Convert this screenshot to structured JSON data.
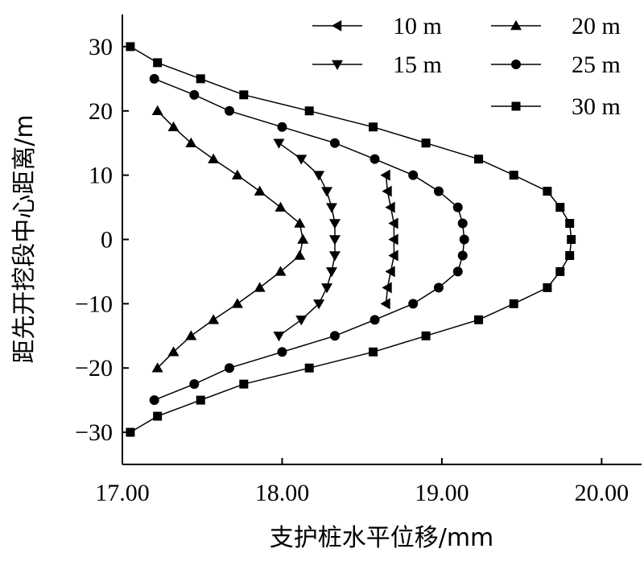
{
  "chart_data": {
    "type": "line",
    "xlabel": "支护桩水平位移/mm",
    "ylabel": "距先开挖段中心距离/m",
    "xlim": [
      17.0,
      20.25
    ],
    "ylim": [
      -35,
      35
    ],
    "x_ticks": [
      17.0,
      18.0,
      19.0,
      20.0
    ],
    "x_tick_labels": [
      "17.00",
      "18.00",
      "19.00",
      "20.00"
    ],
    "y_ticks": [
      -30,
      -20,
      -10,
      0,
      10,
      20,
      30
    ],
    "y_tick_labels": [
      "−30",
      "−20",
      "−10",
      "0",
      "10",
      "20",
      "30"
    ],
    "grid": false,
    "legend_position": "top-right",
    "series": [
      {
        "name": "10 m",
        "marker": "triangle-left",
        "points": [
          [
            18.65,
            10
          ],
          [
            18.66,
            7.5
          ],
          [
            18.68,
            5
          ],
          [
            18.7,
            2.5
          ],
          [
            18.7,
            0
          ],
          [
            18.7,
            -2.5
          ],
          [
            18.68,
            -5
          ],
          [
            18.66,
            -7.5
          ],
          [
            18.65,
            -10
          ]
        ]
      },
      {
        "name": "15 m",
        "marker": "triangle-down",
        "points": [
          [
            17.98,
            15
          ],
          [
            18.12,
            12.5
          ],
          [
            18.23,
            10
          ],
          [
            18.28,
            7.5
          ],
          [
            18.31,
            5
          ],
          [
            18.33,
            2.5
          ],
          [
            18.33,
            0
          ],
          [
            18.33,
            -2.5
          ],
          [
            18.31,
            -5
          ],
          [
            18.28,
            -7.5
          ],
          [
            18.23,
            -10
          ],
          [
            18.12,
            -12.5
          ],
          [
            17.98,
            -15
          ]
        ]
      },
      {
        "name": "20 m",
        "marker": "triangle-up",
        "points": [
          [
            17.22,
            20
          ],
          [
            17.32,
            17.5
          ],
          [
            17.43,
            15
          ],
          [
            17.57,
            12.5
          ],
          [
            17.72,
            10
          ],
          [
            17.86,
            7.5
          ],
          [
            17.99,
            5
          ],
          [
            18.11,
            2.5
          ],
          [
            18.13,
            0
          ],
          [
            18.11,
            -2.5
          ],
          [
            17.99,
            -5
          ],
          [
            17.86,
            -7.5
          ],
          [
            17.72,
            -10
          ],
          [
            17.57,
            -12.5
          ],
          [
            17.43,
            -15
          ],
          [
            17.32,
            -17.5
          ],
          [
            17.22,
            -20
          ]
        ]
      },
      {
        "name": "25 m",
        "marker": "circle",
        "points": [
          [
            17.2,
            25
          ],
          [
            17.45,
            22.5
          ],
          [
            17.67,
            20
          ],
          [
            18.0,
            17.5
          ],
          [
            18.33,
            15
          ],
          [
            18.58,
            12.5
          ],
          [
            18.82,
            10
          ],
          [
            18.98,
            7.5
          ],
          [
            19.1,
            5
          ],
          [
            19.13,
            2.5
          ],
          [
            19.14,
            0
          ],
          [
            19.13,
            -2.5
          ],
          [
            19.1,
            -5
          ],
          [
            18.98,
            -7.5
          ],
          [
            18.82,
            -10
          ],
          [
            18.58,
            -12.5
          ],
          [
            18.33,
            -15
          ],
          [
            18.0,
            -17.5
          ],
          [
            17.67,
            -20
          ],
          [
            17.45,
            -22.5
          ],
          [
            17.2,
            -25
          ]
        ]
      },
      {
        "name": "30 m",
        "marker": "square",
        "points": [
          [
            17.05,
            30
          ],
          [
            17.22,
            27.5
          ],
          [
            17.49,
            25
          ],
          [
            17.76,
            22.5
          ],
          [
            18.17,
            20
          ],
          [
            18.57,
            17.5
          ],
          [
            18.9,
            15
          ],
          [
            19.23,
            12.5
          ],
          [
            19.45,
            10
          ],
          [
            19.66,
            7.5
          ],
          [
            19.74,
            5
          ],
          [
            19.8,
            2.5
          ],
          [
            19.81,
            0
          ],
          [
            19.8,
            -2.5
          ],
          [
            19.74,
            -5
          ],
          [
            19.66,
            -7.5
          ],
          [
            19.45,
            -10
          ],
          [
            19.23,
            -12.5
          ],
          [
            18.9,
            -15
          ],
          [
            18.57,
            -17.5
          ],
          [
            18.17,
            -20
          ],
          [
            17.76,
            -22.5
          ],
          [
            17.49,
            -25
          ],
          [
            17.22,
            -27.5
          ],
          [
            17.05,
            -30
          ]
        ]
      }
    ]
  }
}
